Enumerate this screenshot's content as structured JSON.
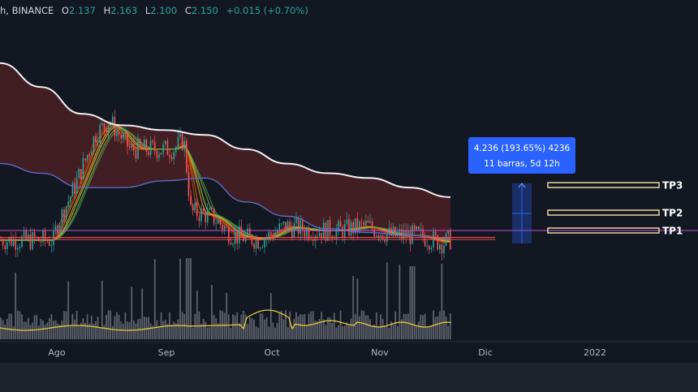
{
  "header": {
    "timeframe": "h, BINANCE",
    "o_label": "O",
    "o_value": "2.137",
    "h_label": "H",
    "h_value": "2.163",
    "l_label": "L",
    "l_value": "2.100",
    "c_label": "C",
    "c_value": "2.150",
    "change": "+0.015 (+0.70%)"
  },
  "colors": {
    "background": "#131722",
    "up": "#26a69a",
    "down": "#ef5350",
    "band_fill": "#4a2024",
    "ma_white": "#f0f0f0",
    "ma_blue": "#5c6bc0",
    "volume": "#6b6e78",
    "volume_ma": "#e2c93a",
    "support": "#ff4d4d",
    "magenta_line": "#c050d0",
    "measure": "#2962ff",
    "tp_box": "#f5e3a8"
  },
  "measure_label": {
    "line1": "4.236 (193.65%) 4236",
    "line2": "11 barras, 5d 12h"
  },
  "targets": [
    "TP3",
    "TP2",
    "TP1"
  ],
  "chart_data": {
    "type": "line",
    "x_ticks": [
      "Ago",
      "Sep",
      "Oct",
      "Nov",
      "Dic",
      "2022"
    ],
    "price_path": [
      [
        "Jul 21",
        2.0
      ],
      [
        "Ago 1",
        2.15
      ],
      [
        "Ago 6",
        2.55
      ],
      [
        "Ago 12",
        3.1
      ],
      [
        "Ago 16",
        3.25
      ],
      [
        "Ago 22",
        2.95
      ],
      [
        "Ago 28",
        2.95
      ],
      [
        "Sep 3",
        2.95
      ],
      [
        "Sep 6",
        3.05
      ],
      [
        "Sep 8",
        2.3
      ],
      [
        "Sep 14",
        2.25
      ],
      [
        "Sep 20",
        2.05
      ],
      [
        "Sep 28",
        2.0
      ],
      [
        "Oct 5",
        2.15
      ],
      [
        "Oct 12",
        2.1
      ],
      [
        "Oct 20",
        2.1
      ],
      [
        "Oct 28",
        2.15
      ],
      [
        "Nov 4",
        2.05
      ],
      [
        "Nov 12",
        2.05
      ],
      [
        "Nov 19",
        1.97
      ],
      [
        "Nov 21",
        2.0
      ]
    ],
    "white_ma": [
      3.85,
      3.6,
      3.32,
      3.2,
      3.15,
      3.1,
      2.95,
      2.8,
      2.7,
      2.65,
      2.55,
      2.45
    ],
    "blue_ma": [
      2.8,
      2.7,
      2.55,
      2.55,
      2.62,
      2.65,
      2.4,
      2.25,
      2.12,
      2.08,
      2.05,
      2.02
    ],
    "volume_ma_level": "low",
    "target_levels": {
      "TP1": 2.1,
      "TP2": 2.3,
      "TP3": 2.7
    },
    "support_level": 2.03
  }
}
